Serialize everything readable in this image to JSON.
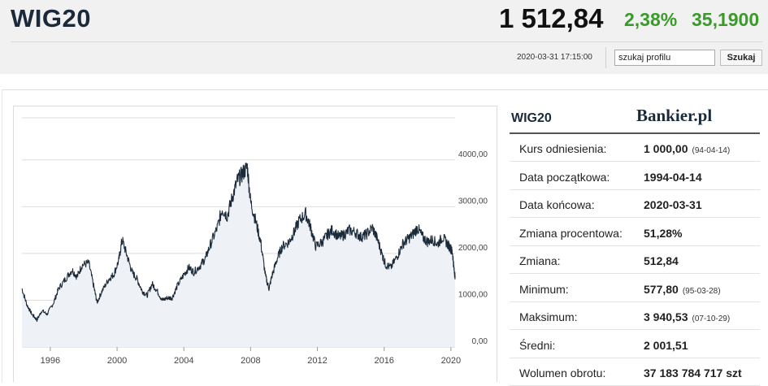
{
  "header": {
    "index_name": "WIG20",
    "price": "1 512,84",
    "change_percent": "2,38%",
    "change_value": "35,1900",
    "timestamp": "2020-03-31 17:15:00",
    "positive_color": "#3c9a2c"
  },
  "search": {
    "value": "szukaj profilu",
    "button_label": "Szukaj"
  },
  "info": {
    "title": "WIG20",
    "brand": "Bankier.pl",
    "rows": [
      {
        "label": "Kurs odniesienia:",
        "value": "1 000,00",
        "extra": "(94-04-14)"
      },
      {
        "label": "Data początkowa:",
        "value": "1994-04-14",
        "extra": ""
      },
      {
        "label": "Data końcowa:",
        "value": "2020-03-31",
        "extra": ""
      },
      {
        "label": "Zmiana procentowa:",
        "value": "51,28%",
        "extra": ""
      },
      {
        "label": "Zmiana:",
        "value": "512,84",
        "extra": ""
      },
      {
        "label": "Minimum:",
        "value": "577,80",
        "extra": "(95-03-28)"
      },
      {
        "label": "Maksimum:",
        "value": "3 940,53",
        "extra": "(07-10-29)"
      },
      {
        "label": "Średni:",
        "value": "2 001,51",
        "extra": ""
      },
      {
        "label": "Wolumen obrotu:",
        "value": "37 183 784 717 szt",
        "extra": ""
      }
    ]
  },
  "chart_data": {
    "type": "line",
    "title": "",
    "xlabel": "",
    "ylabel": "",
    "x_ticks": [
      "1996",
      "2000",
      "2004",
      "2008",
      "2012",
      "2016",
      "2020"
    ],
    "y_ticks": [
      "0,00",
      "1000,00",
      "2000,00",
      "3000,00",
      "4000,00"
    ],
    "xlim": [
      1994.3,
      2020.25
    ],
    "ylim": [
      0,
      4900
    ],
    "grid": true,
    "line_color": "#1b2a3a",
    "fill_color": "#eef1f5",
    "series": [
      {
        "x": [
          1994.3,
          1994.6,
          1994.9,
          1995.2,
          1995.5,
          1995.8,
          1996.2,
          1996.5,
          1996.9,
          1997.3,
          1997.6,
          1997.9,
          1998.3,
          1998.6,
          1998.8,
          1999.1,
          1999.5,
          1999.8,
          2000.1,
          2000.3,
          2000.6,
          2000.9,
          2001.2,
          2001.5,
          2001.8,
          2002.1,
          2002.4,
          2002.7,
          2003.0,
          2003.3,
          2003.6,
          2004.0,
          2004.3,
          2004.6,
          2005.0,
          2005.3,
          2005.6,
          2006.0,
          2006.3,
          2006.6,
          2006.9,
          2007.2,
          2007.5,
          2007.8,
          2008.0,
          2008.3,
          2008.6,
          2008.9,
          2009.1,
          2009.3,
          2009.6,
          2009.9,
          2010.3,
          2010.6,
          2010.9,
          2011.3,
          2011.6,
          2011.9,
          2012.3,
          2012.6,
          2012.9,
          2013.3,
          2013.6,
          2013.9,
          2014.3,
          2014.6,
          2014.9,
          2015.3,
          2015.6,
          2015.9,
          2016.1,
          2016.4,
          2016.8,
          2017.1,
          2017.4,
          2017.7,
          2018.0,
          2018.3,
          2018.6,
          2018.9,
          2019.2,
          2019.5,
          2019.8,
          2020.0,
          2020.1,
          2020.2,
          2020.25
        ],
        "y": [
          1250,
          900,
          700,
          580,
          780,
          700,
          950,
          1250,
          1450,
          1650,
          1500,
          1750,
          1800,
          1300,
          950,
          1200,
          1450,
          1550,
          1850,
          2300,
          1950,
          1600,
          1450,
          1200,
          1100,
          1350,
          1200,
          1000,
          1050,
          1050,
          1300,
          1550,
          1700,
          1600,
          1750,
          1900,
          2200,
          2550,
          2950,
          2800,
          3200,
          3550,
          3700,
          3850,
          3100,
          2700,
          2250,
          1500,
          1250,
          1550,
          1900,
          2150,
          2250,
          2450,
          2700,
          2850,
          2550,
          2150,
          2250,
          2400,
          2500,
          2350,
          2400,
          2500,
          2450,
          2350,
          2400,
          2550,
          2300,
          1950,
          1750,
          1700,
          1950,
          2200,
          2300,
          2400,
          2550,
          2350,
          2250,
          2300,
          2200,
          2350,
          2200,
          2100,
          2000,
          1600,
          1520
        ]
      }
    ]
  }
}
